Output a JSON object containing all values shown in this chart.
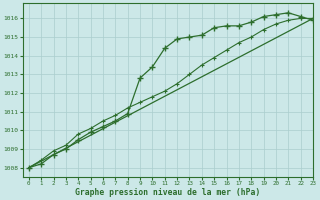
{
  "line1_x": [
    0,
    1,
    2,
    3,
    4,
    5,
    6,
    7,
    8,
    9,
    10,
    11,
    12,
    13,
    14,
    15,
    16,
    17,
    18,
    19,
    20,
    21,
    22,
    23
  ],
  "line1_y": [
    1008.0,
    1008.2,
    1008.7,
    1009.0,
    1009.5,
    1009.9,
    1010.2,
    1010.5,
    1010.9,
    1012.8,
    1013.4,
    1014.4,
    1014.9,
    1015.0,
    1015.1,
    1015.5,
    1015.6,
    1015.6,
    1015.8,
    1016.1,
    1016.2,
    1016.3,
    1016.1,
    1015.9
  ],
  "line2_x": [
    0,
    1,
    2,
    3,
    4,
    5,
    6,
    7,
    8,
    9,
    10,
    11,
    12,
    13,
    14,
    15,
    16,
    17,
    18,
    19,
    20,
    21,
    22,
    23
  ],
  "line2_y": [
    1008.0,
    1008.4,
    1008.9,
    1009.2,
    1009.8,
    1010.1,
    1010.5,
    1010.8,
    1011.2,
    1011.5,
    1011.8,
    1012.1,
    1012.5,
    1013.0,
    1013.5,
    1013.9,
    1014.3,
    1014.7,
    1015.0,
    1015.4,
    1015.7,
    1015.9,
    1016.0,
    1016.0
  ],
  "line3_x": [
    0,
    23
  ],
  "line3_y": [
    1008.0,
    1016.0
  ],
  "line_color": "#2d6e2d",
  "bg_color": "#cce8e8",
  "grid_color": "#aacece",
  "xlabel": "Graphe pression niveau de la mer (hPa)",
  "xlim": [
    -0.5,
    23
  ],
  "ylim": [
    1007.5,
    1016.8
  ],
  "yticks": [
    1008,
    1009,
    1010,
    1011,
    1012,
    1013,
    1014,
    1015,
    1016
  ],
  "xticks": [
    0,
    1,
    2,
    3,
    4,
    5,
    6,
    7,
    8,
    9,
    10,
    11,
    12,
    13,
    14,
    15,
    16,
    17,
    18,
    19,
    20,
    21,
    22,
    23
  ]
}
